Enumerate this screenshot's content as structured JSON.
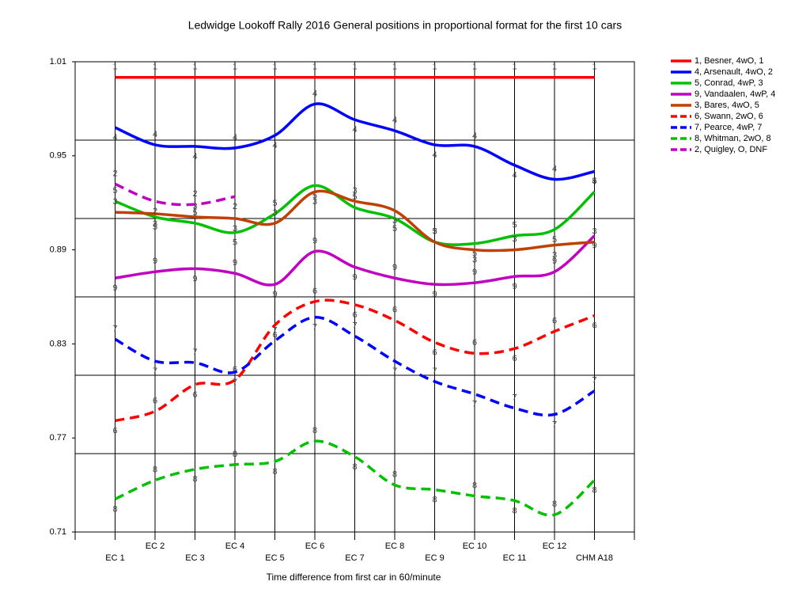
{
  "chart_data": {
    "type": "line",
    "title": "Ledwidge Lookoff Rally 2016  General positions in proportional format for the first 10 cars",
    "x_label": "Time difference from first car in 60/minute",
    "categories": [
      "EC 1",
      "EC 2",
      "EC 3",
      "EC 4",
      "EC 5",
      "EC 6",
      "EC 7",
      "EC 8",
      "EC 9",
      "EC 10",
      "EC 11",
      "EC 12",
      "CHM A18"
    ],
    "ylim": [
      0.71,
      1.01
    ],
    "yticks": [
      1.01,
      0.95,
      0.89,
      0.83,
      0.77,
      0.71
    ],
    "ygrid": [
      0.96,
      0.91,
      0.86,
      0.81,
      0.76
    ],
    "grid": true,
    "legend": "right",
    "series": [
      {
        "name": "1, Besner, 4wO, 1",
        "marker": "1",
        "color": "#ff0000",
        "dash": false,
        "values": [
          1.0,
          1.0,
          1.0,
          1.0,
          1.0,
          1.0,
          1.0,
          1.0,
          1.0,
          1.0,
          1.0,
          1.0,
          1.0
        ]
      },
      {
        "name": "4, Arsenault, 4wO, 2",
        "marker": "4",
        "color": "#0000ff",
        "dash": false,
        "values": [
          0.968,
          0.957,
          0.956,
          0.955,
          0.963,
          0.983,
          0.973,
          0.966,
          0.957,
          0.956,
          0.944,
          0.935,
          0.94
        ]
      },
      {
        "name": "5, Conrad, 4wP, 3",
        "marker": "5",
        "color": "#00c000",
        "dash": false,
        "values": [
          0.921,
          0.911,
          0.907,
          0.901,
          0.913,
          0.931,
          0.917,
          0.91,
          0.895,
          0.894,
          0.899,
          0.903,
          0.927
        ]
      },
      {
        "name": "9, Vandaalen, 4wP, 4",
        "marker": "9",
        "color": "#c000c0",
        "dash": false,
        "values": [
          0.872,
          0.876,
          0.878,
          0.875,
          0.868,
          0.889,
          0.879,
          0.872,
          0.868,
          0.869,
          0.873,
          0.876,
          0.899
        ]
      },
      {
        "name": "3, Bares, 4wO, 5",
        "marker": "3",
        "color": "#c04000",
        "dash": false,
        "values": [
          0.914,
          0.913,
          0.911,
          0.91,
          0.907,
          0.927,
          0.921,
          0.915,
          0.895,
          0.89,
          0.89,
          0.893,
          0.895
        ]
      },
      {
        "name": "6, Swann, 2wO, 6",
        "marker": "6",
        "color": "#ff0000",
        "dash": true,
        "values": [
          0.781,
          0.787,
          0.804,
          0.807,
          0.842,
          0.857,
          0.855,
          0.845,
          0.831,
          0.824,
          0.827,
          0.838,
          0.848
        ]
      },
      {
        "name": "7, Pearce, 4wP, 7",
        "marker": "7",
        "color": "#0000ff",
        "dash": true,
        "values": [
          0.833,
          0.819,
          0.818,
          0.812,
          0.832,
          0.847,
          0.835,
          0.819,
          0.806,
          0.798,
          0.789,
          0.785,
          0.8
        ]
      },
      {
        "name": "8, Whitman, 2wO, 8",
        "marker": "8",
        "color": "#00c000",
        "dash": true,
        "values": [
          0.731,
          0.743,
          0.75,
          0.753,
          0.755,
          0.768,
          0.758,
          0.74,
          0.737,
          0.733,
          0.73,
          0.721,
          0.743
        ]
      },
      {
        "name": "2, Quigley, O, DNF",
        "marker": "2",
        "color": "#c000c0",
        "dash": true,
        "values": [
          0.932,
          0.921,
          0.919,
          0.924,
          null,
          null,
          null,
          null,
          null,
          null,
          null,
          null,
          null
        ]
      }
    ]
  }
}
